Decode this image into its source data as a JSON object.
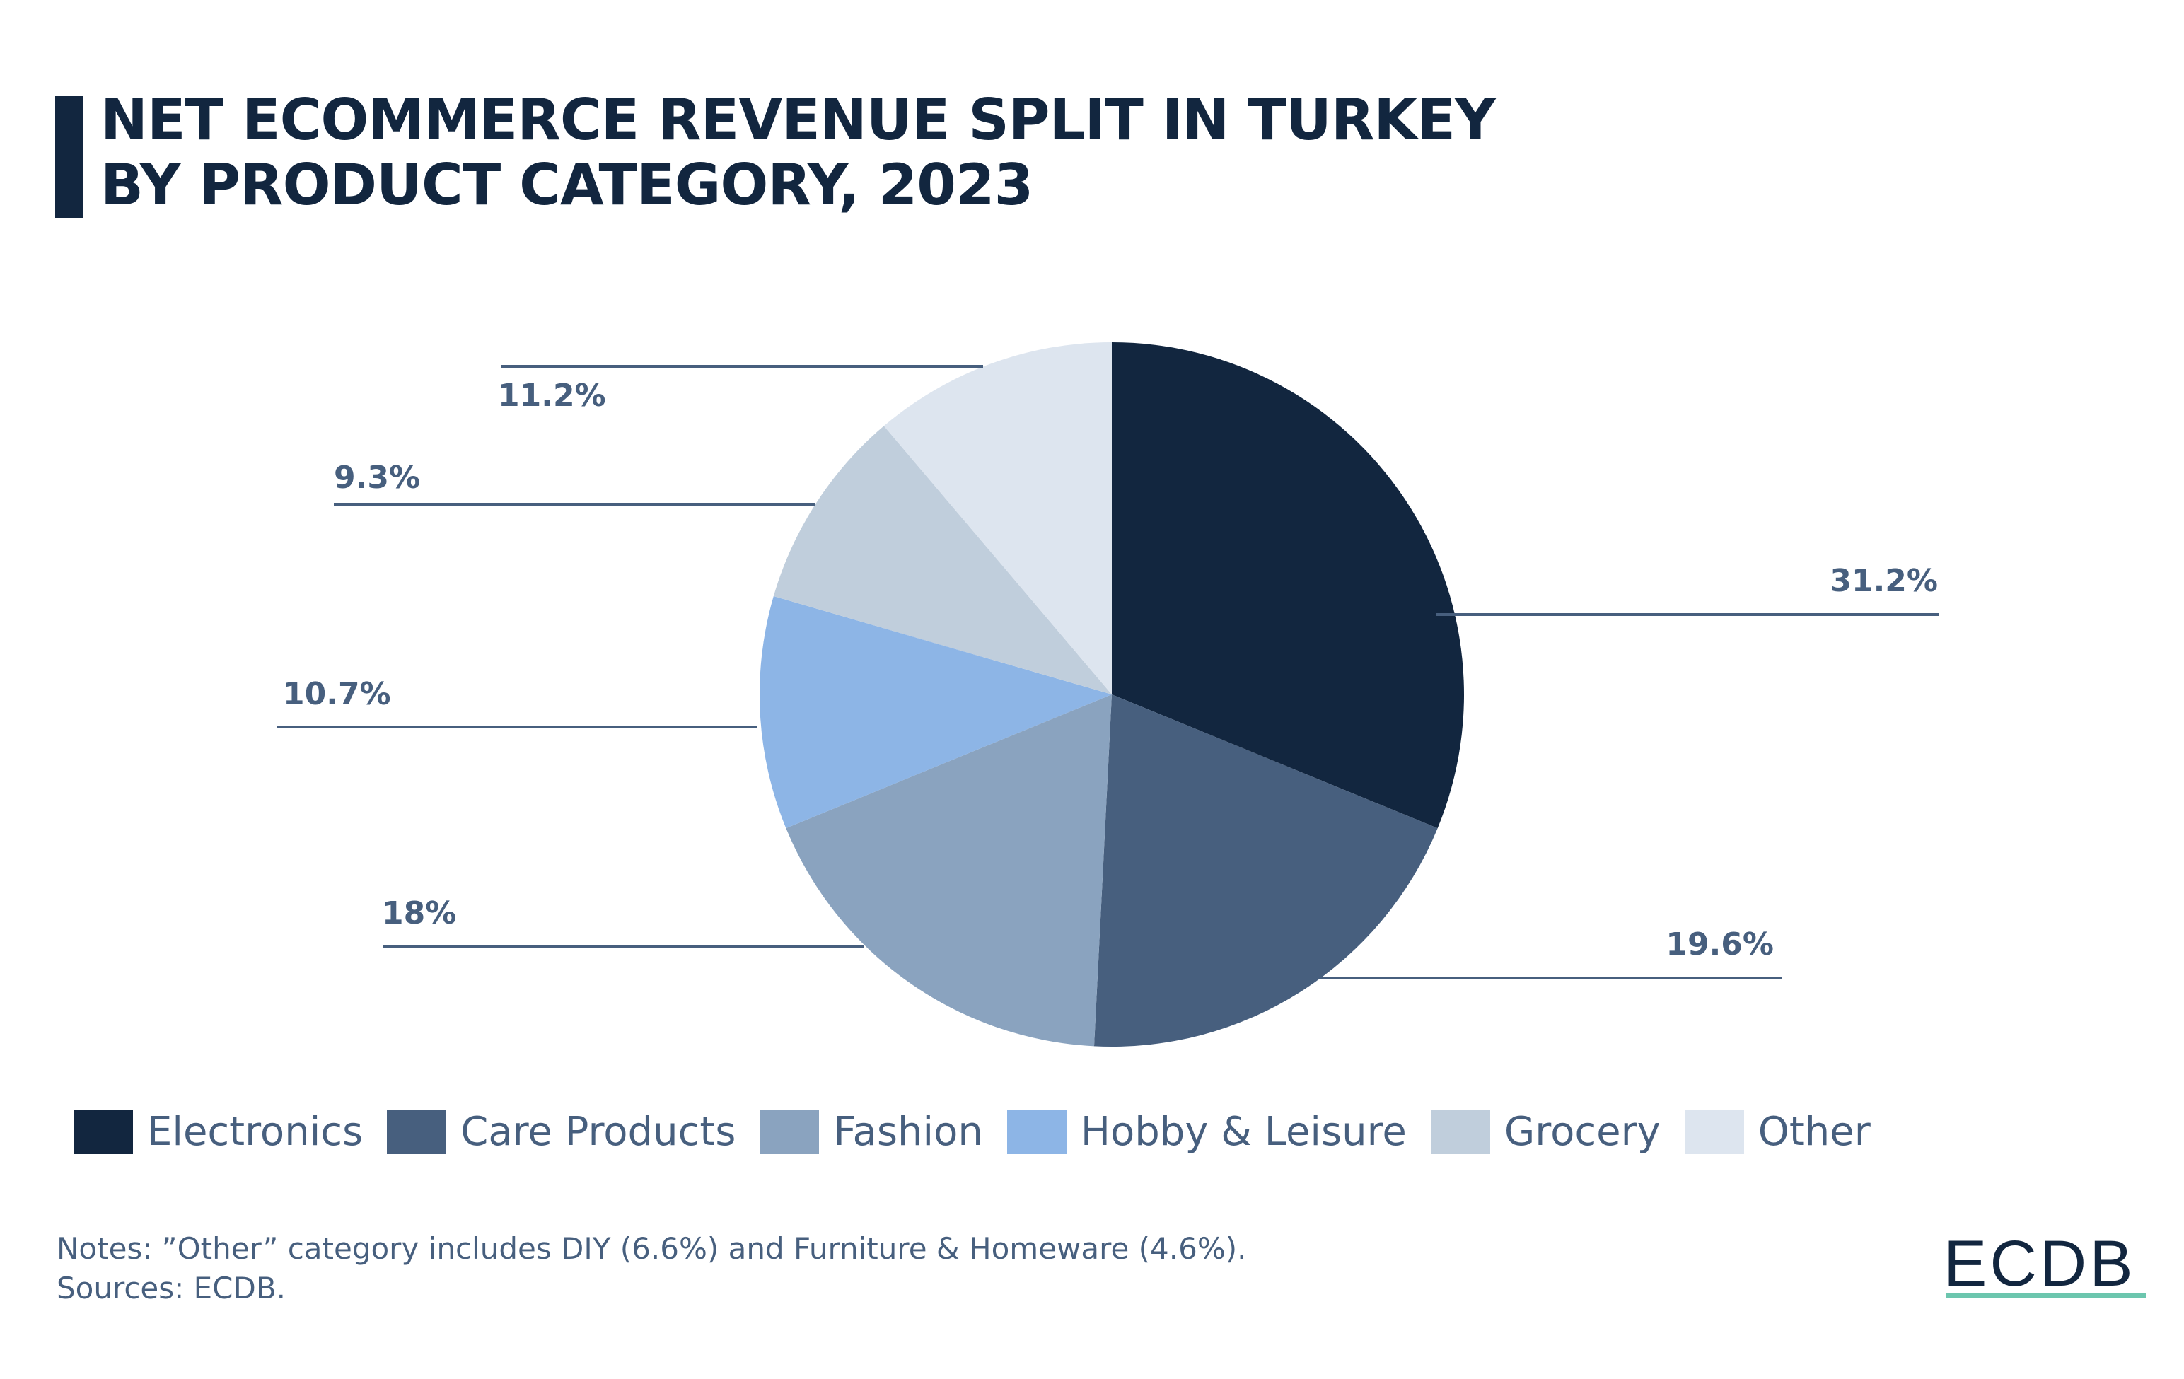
{
  "header": {
    "title_line1": "NET ECOMMERCE REVENUE SPLIT IN TURKEY",
    "title_line2": "BY PRODUCT CATEGORY, 2023"
  },
  "chart_data": {
    "type": "pie",
    "title": "Net eCommerce Revenue Split in Turkey by Product Category, 2023",
    "categories": [
      "Electronics",
      "Care Products",
      "Fashion",
      "Hobby & Leisure",
      "Grocery",
      "Other"
    ],
    "values": [
      31.2,
      19.6,
      18,
      10.7,
      9.3,
      11.2
    ],
    "labels": [
      "31.2%",
      "19.6%",
      "18%",
      "10.7%",
      "9.3%",
      "11.2%"
    ],
    "colors": [
      "#12263f",
      "#475f7e",
      "#8aa3bf",
      "#8db5e6",
      "#c0cedc",
      "#dde5ef"
    ],
    "start_angle_deg": 0,
    "direction": "clockwise",
    "legend_position": "bottom"
  },
  "legend": {
    "items": [
      {
        "label": "Electronics",
        "color": "#12263f"
      },
      {
        "label": "Care Products",
        "color": "#475f7e"
      },
      {
        "label": "Fashion",
        "color": "#8aa3bf"
      },
      {
        "label": "Hobby & Leisure",
        "color": "#8db5e6"
      },
      {
        "label": "Grocery",
        "color": "#c0cedc"
      },
      {
        "label": "Other",
        "color": "#dde5ef"
      }
    ]
  },
  "footer": {
    "notes": "Notes: ”Other” category includes DIY (6.6%) and Furniture & Homeware (4.6%).",
    "sources": "Sources: ECDB.",
    "logo": "ECDB"
  },
  "colors": {
    "brand_dark": "#12263f",
    "label_text": "#475f7e",
    "logo_accent": "#6cc6ae"
  }
}
